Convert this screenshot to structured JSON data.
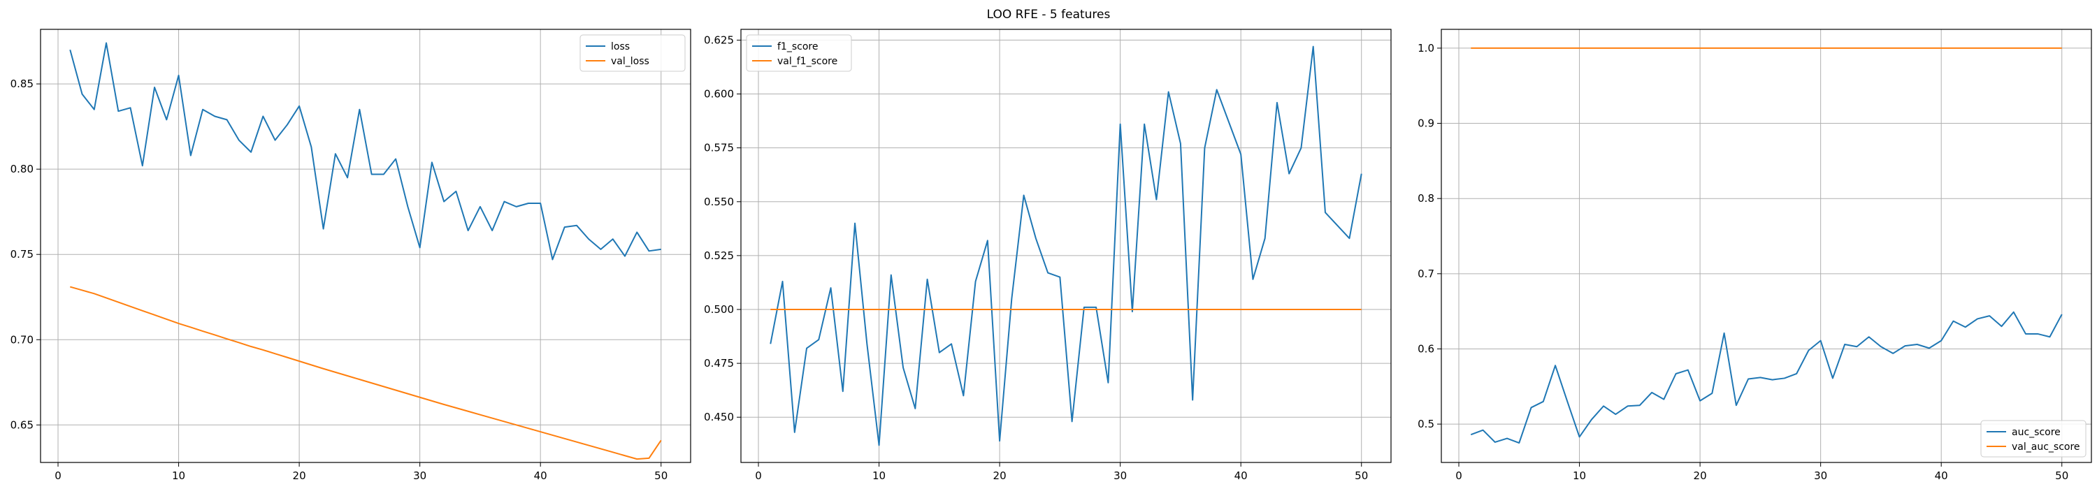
{
  "figure": {
    "suptitle": "LOO RFE - 5 features"
  },
  "colors": {
    "blue": "#1f77b4",
    "orange": "#ff7f0e",
    "grid": "#b0b0b0",
    "axis": "#000000"
  },
  "chart_data": [
    {
      "type": "line",
      "title": "",
      "xlabel": "",
      "ylabel": "",
      "grid": true,
      "legend_position": "upper right",
      "xlim": [
        -1.45,
        52.45
      ],
      "ylim": [
        0.628,
        0.882
      ],
      "xticks": [
        0,
        10,
        20,
        30,
        40,
        50
      ],
      "xtick_labels": [
        "0",
        "10",
        "20",
        "30",
        "40",
        "50"
      ],
      "yticks": [
        0.65,
        0.7,
        0.75,
        0.8,
        0.85
      ],
      "ytick_labels": [
        "0.65",
        "0.70",
        "0.75",
        "0.80",
        "0.85"
      ],
      "x": [
        1,
        2,
        3,
        4,
        5,
        6,
        7,
        8,
        9,
        10,
        11,
        12,
        13,
        14,
        15,
        16,
        17,
        18,
        19,
        20,
        21,
        22,
        23,
        24,
        25,
        26,
        27,
        28,
        29,
        30,
        31,
        32,
        33,
        34,
        35,
        36,
        37,
        38,
        39,
        40,
        41,
        42,
        43,
        44,
        45,
        46,
        47,
        48,
        49,
        50
      ],
      "series": [
        {
          "name": "loss",
          "color": "blue",
          "values": [
            0.87,
            0.844,
            0.835,
            0.874,
            0.834,
            0.836,
            0.802,
            0.848,
            0.829,
            0.855,
            0.808,
            0.835,
            0.831,
            0.829,
            0.817,
            0.81,
            0.831,
            0.817,
            0.826,
            0.837,
            0.813,
            0.765,
            0.809,
            0.795,
            0.835,
            0.797,
            0.797,
            0.806,
            0.778,
            0.754,
            0.804,
            0.781,
            0.787,
            0.764,
            0.778,
            0.764,
            0.781,
            0.778,
            0.78,
            0.78,
            0.747,
            0.766,
            0.767,
            0.759,
            0.753,
            0.759,
            0.749,
            0.763,
            0.752,
            0.753
          ]
        },
        {
          "name": "val_loss",
          "color": "orange",
          "values": [
            0.731,
            0.729,
            0.727,
            0.7245,
            0.722,
            0.7195,
            0.717,
            0.7145,
            0.712,
            0.7095,
            0.7073,
            0.705,
            0.7028,
            0.7005,
            0.6983,
            0.696,
            0.694,
            0.6918,
            0.6896,
            0.6874,
            0.6852,
            0.683,
            0.6809,
            0.6788,
            0.6767,
            0.6746,
            0.6725,
            0.6704,
            0.6683,
            0.6662,
            0.6641,
            0.662,
            0.66,
            0.658,
            0.656,
            0.654,
            0.652,
            0.65,
            0.648,
            0.646,
            0.644,
            0.642,
            0.64,
            0.638,
            0.636,
            0.634,
            0.632,
            0.63,
            0.6305,
            0.641
          ]
        }
      ]
    },
    {
      "type": "line",
      "title": "",
      "xlabel": "",
      "ylabel": "",
      "grid": true,
      "legend_position": "upper left",
      "xlim": [
        -1.45,
        52.45
      ],
      "ylim": [
        0.429,
        0.63
      ],
      "xticks": [
        0,
        10,
        20,
        30,
        40,
        50
      ],
      "xtick_labels": [
        "0",
        "10",
        "20",
        "30",
        "40",
        "50"
      ],
      "yticks": [
        0.45,
        0.475,
        0.5,
        0.525,
        0.55,
        0.575,
        0.6,
        0.625
      ],
      "ytick_labels": [
        "0.450",
        "0.475",
        "0.500",
        "0.525",
        "0.550",
        "0.575",
        "0.600",
        "0.625"
      ],
      "x": [
        1,
        2,
        3,
        4,
        5,
        6,
        7,
        8,
        9,
        10,
        11,
        12,
        13,
        14,
        15,
        16,
        17,
        18,
        19,
        20,
        21,
        22,
        23,
        24,
        25,
        26,
        27,
        28,
        29,
        30,
        31,
        32,
        33,
        34,
        35,
        36,
        37,
        38,
        39,
        40,
        41,
        42,
        43,
        44,
        45,
        46,
        47,
        48,
        49,
        50
      ],
      "series": [
        {
          "name": "f1_score",
          "color": "blue",
          "values": [
            0.484,
            0.513,
            0.443,
            0.482,
            0.486,
            0.51,
            0.462,
            0.54,
            0.484,
            0.437,
            0.516,
            0.473,
            0.454,
            0.514,
            0.48,
            0.484,
            0.46,
            0.513,
            0.532,
            0.439,
            0.505,
            0.553,
            0.533,
            0.517,
            0.515,
            0.448,
            0.501,
            0.501,
            0.466,
            0.586,
            0.499,
            0.586,
            0.551,
            0.601,
            0.577,
            0.458,
            0.575,
            0.602,
            0.587,
            0.572,
            0.514,
            0.533,
            0.596,
            0.563,
            0.575,
            0.622,
            0.545,
            0.539,
            0.533,
            0.563
          ]
        },
        {
          "name": "val_f1_score",
          "color": "orange",
          "values": [
            0.5,
            0.5,
            0.5,
            0.5,
            0.5,
            0.5,
            0.5,
            0.5,
            0.5,
            0.5,
            0.5,
            0.5,
            0.5,
            0.5,
            0.5,
            0.5,
            0.5,
            0.5,
            0.5,
            0.5,
            0.5,
            0.5,
            0.5,
            0.5,
            0.5,
            0.5,
            0.5,
            0.5,
            0.5,
            0.5,
            0.5,
            0.5,
            0.5,
            0.5,
            0.5,
            0.5,
            0.5,
            0.5,
            0.5,
            0.5,
            0.5,
            0.5,
            0.5,
            0.5,
            0.5,
            0.5,
            0.5,
            0.5,
            0.5,
            0.5
          ]
        }
      ]
    },
    {
      "type": "line",
      "title": "",
      "xlabel": "",
      "ylabel": "",
      "grid": true,
      "legend_position": "lower right",
      "xlim": [
        -1.45,
        52.45
      ],
      "ylim": [
        0.449,
        1.025
      ],
      "xticks": [
        0,
        10,
        20,
        30,
        40,
        50
      ],
      "xtick_labels": [
        "0",
        "10",
        "20",
        "30",
        "40",
        "50"
      ],
      "yticks": [
        0.5,
        0.6,
        0.7,
        0.8,
        0.9,
        1.0
      ],
      "ytick_labels": [
        "0.5",
        "0.6",
        "0.7",
        "0.8",
        "0.9",
        "1.0"
      ],
      "x": [
        1,
        2,
        3,
        4,
        5,
        6,
        7,
        8,
        9,
        10,
        11,
        12,
        13,
        14,
        15,
        16,
        17,
        18,
        19,
        20,
        21,
        22,
        23,
        24,
        25,
        26,
        27,
        28,
        29,
        30,
        31,
        32,
        33,
        34,
        35,
        36,
        37,
        38,
        39,
        40,
        41,
        42,
        43,
        44,
        45,
        46,
        47,
        48,
        49,
        50
      ],
      "series": [
        {
          "name": "auc_score",
          "color": "blue",
          "values": [
            0.486,
            0.492,
            0.476,
            0.481,
            0.475,
            0.522,
            0.53,
            0.578,
            0.53,
            0.483,
            0.506,
            0.524,
            0.513,
            0.524,
            0.525,
            0.542,
            0.533,
            0.567,
            0.572,
            0.531,
            0.541,
            0.621,
            0.525,
            0.56,
            0.562,
            0.559,
            0.561,
            0.567,
            0.598,
            0.611,
            0.561,
            0.606,
            0.603,
            0.616,
            0.603,
            0.594,
            0.604,
            0.606,
            0.601,
            0.611,
            0.637,
            0.629,
            0.64,
            0.644,
            0.63,
            0.649,
            0.62,
            0.62,
            0.616,
            0.646
          ]
        },
        {
          "name": "val_auc_score",
          "color": "orange",
          "values": [
            1.0,
            1.0,
            1.0,
            1.0,
            1.0,
            1.0,
            1.0,
            1.0,
            1.0,
            1.0,
            1.0,
            1.0,
            1.0,
            1.0,
            1.0,
            1.0,
            1.0,
            1.0,
            1.0,
            1.0,
            1.0,
            1.0,
            1.0,
            1.0,
            1.0,
            1.0,
            1.0,
            1.0,
            1.0,
            1.0,
            1.0,
            1.0,
            1.0,
            1.0,
            1.0,
            1.0,
            1.0,
            1.0,
            1.0,
            1.0,
            1.0,
            1.0,
            1.0,
            1.0,
            1.0,
            1.0,
            1.0,
            1.0,
            1.0,
            1.0
          ]
        }
      ]
    }
  ]
}
